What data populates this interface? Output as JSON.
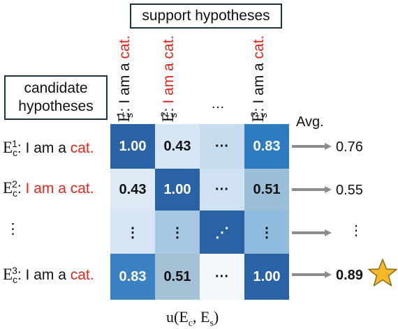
{
  "support_box": {
    "label": "support hypotheses"
  },
  "candidate_box": {
    "line1": "candidate",
    "line2": "hypotheses"
  },
  "columns": [
    {
      "symbol": "E",
      "sub": "s",
      "sup": "1",
      "colon": ": ",
      "plain": "I am a ",
      "red": "cat."
    },
    {
      "symbol": "E",
      "sub": "s",
      "sup": "2",
      "colon": ": ",
      "plain": "",
      "red": "I am a cat."
    },
    {
      "dots": "…"
    },
    {
      "symbol": "E",
      "sub": "s",
      "sup": "3",
      "colon": ": ",
      "plain": "I am a ",
      "red": "cat."
    }
  ],
  "rows": [
    {
      "symbol": "E",
      "sub": "c",
      "sup": "1",
      "colon": ": ",
      "plain": "I am a ",
      "red": "cat."
    },
    {
      "symbol": "E",
      "sub": "c",
      "sup": "2",
      "colon": ": ",
      "plain": "",
      "red": "I am a cat."
    },
    {
      "dots": "⋮"
    },
    {
      "symbol": "E",
      "sub": "c",
      "sup": "3",
      "colon": ": ",
      "plain": "I am a ",
      "red": "cat."
    }
  ],
  "matrix": {
    "cells": [
      [
        "1.00",
        "0.43",
        "···",
        "0.83"
      ],
      [
        "0.43",
        "1.00",
        "···",
        "0.51"
      ],
      [
        "⋮",
        "⋮",
        "⋰",
        "⋮"
      ],
      [
        "0.83",
        "0.51",
        "···",
        "1.00"
      ]
    ],
    "colors": [
      [
        "#2a62a6",
        "#d7e6f5",
        "#c7dcef",
        "#2f7bbf"
      ],
      [
        "#ddeaf6",
        "#2a62a6",
        "#cfe1f2",
        "#9bbfd6"
      ],
      [
        "#d6e5f4",
        "#a6c8e2",
        "#2a62a6",
        "#8fbbdf"
      ],
      [
        "#3a80c2",
        "#a4c1d6",
        "#f4f8fc",
        "#2a62a6"
      ]
    ],
    "text_colors": [
      [
        "#ffffff",
        "#111111",
        "#111111",
        "#ffffff"
      ],
      [
        "#111111",
        "#ffffff",
        "#111111",
        "#111111"
      ],
      [
        "#111111",
        "#111111",
        "#ffffff",
        "#111111"
      ],
      [
        "#ffffff",
        "#111111",
        "#111111",
        "#ffffff"
      ]
    ]
  },
  "avg_header": "Avg.",
  "averages": [
    {
      "value": "0.76",
      "bold": false
    },
    {
      "value": "0.55",
      "bold": false
    },
    {
      "value": "⋮",
      "bold": false
    },
    {
      "value": "0.89",
      "bold": true,
      "icon": "star-icon"
    }
  ],
  "caption": {
    "prefix": "u(E",
    "sub1": "c",
    "mid": ", E",
    "sub2": "s",
    "suffix": ")"
  },
  "colors": {
    "accent_red": "#e0261c",
    "arrow_gray": "#8c8c8c",
    "star_fill": "#f7b82a",
    "star_stroke": "#8a6a14",
    "box_border": "#1c3340"
  }
}
